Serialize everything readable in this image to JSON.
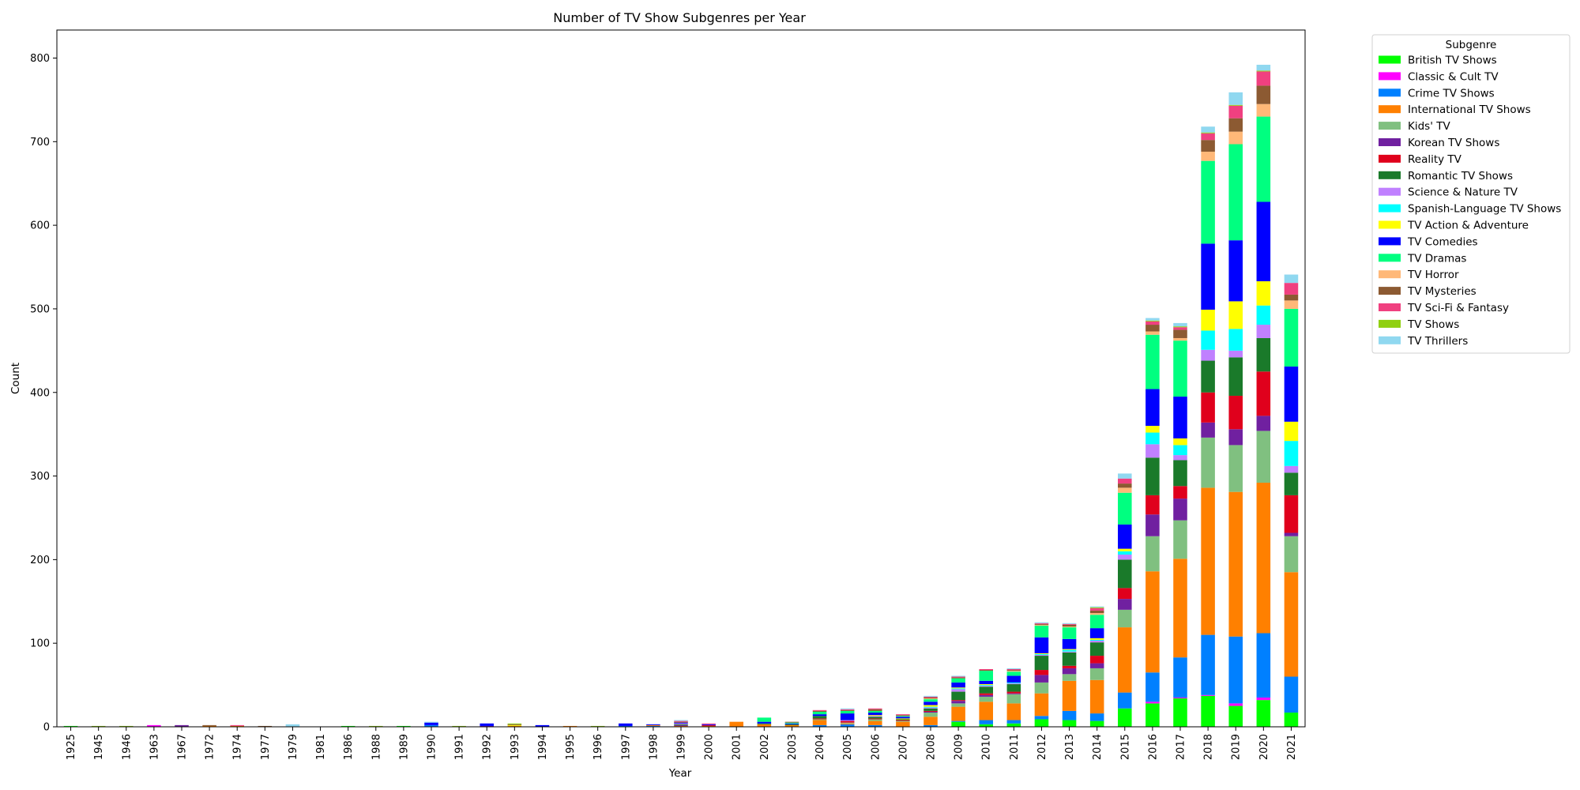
{
  "chart_data": {
    "type": "bar",
    "stacked": true,
    "title": "Number of TV Show Subgenres per Year",
    "xlabel": "Year",
    "ylabel": "Count",
    "ylim": [
      0,
      835
    ],
    "yticks": [
      0,
      100,
      200,
      300,
      400,
      500,
      600,
      700,
      800
    ],
    "legend_title": "Subgenre",
    "legend_placement": "outside-top-right",
    "grid": false,
    "categories": [
      "1925",
      "1945",
      "1946",
      "1963",
      "1967",
      "1972",
      "1974",
      "1977",
      "1979",
      "1981",
      "1986",
      "1988",
      "1989",
      "1990",
      "1991",
      "1992",
      "1993",
      "1994",
      "1995",
      "1996",
      "1997",
      "1998",
      "1999",
      "2000",
      "2001",
      "2002",
      "2003",
      "2004",
      "2005",
      "2006",
      "2007",
      "2008",
      "2009",
      "2010",
      "2011",
      "2012",
      "2013",
      "2014",
      "2015",
      "2016",
      "2017",
      "2018",
      "2019",
      "2020",
      "2021"
    ],
    "series": [
      {
        "name": "British TV Shows",
        "color": "#00ff00",
        "values": [
          1,
          0,
          0,
          0,
          0,
          0,
          0,
          0,
          0,
          0,
          1,
          0,
          1,
          0,
          0,
          0,
          0,
          0,
          0,
          0,
          0,
          0,
          0,
          0,
          0,
          0,
          0,
          0,
          0,
          0,
          0,
          0,
          6,
          3,
          4,
          9,
          8,
          7,
          22,
          28,
          34,
          37,
          25,
          32,
          17
        ]
      },
      {
        "name": "Classic & Cult TV",
        "color": "#ff00ff",
        "values": [
          0,
          0,
          0,
          2,
          0,
          0,
          0,
          0,
          0,
          0,
          0,
          0,
          0,
          0,
          0,
          0,
          0,
          0,
          0,
          0,
          0,
          0,
          0,
          0,
          0,
          0,
          0,
          0,
          0,
          0,
          0,
          0,
          0,
          0,
          0,
          0,
          0,
          0,
          0,
          2,
          1,
          1,
          3,
          3,
          0
        ]
      },
      {
        "name": "Crime TV Shows",
        "color": "#0080ff",
        "values": [
          0,
          0,
          0,
          0,
          0,
          0,
          0,
          0,
          0,
          0,
          0,
          0,
          0,
          2,
          0,
          0,
          0,
          0,
          0,
          0,
          1,
          1,
          0,
          0,
          0,
          0,
          0,
          2,
          3,
          2,
          0,
          2,
          1,
          5,
          4,
          4,
          11,
          9,
          19,
          35,
          48,
          72,
          80,
          77,
          43
        ]
      },
      {
        "name": "International TV Shows",
        "color": "#ff8000",
        "values": [
          0,
          0,
          0,
          0,
          0,
          1,
          1,
          0,
          0,
          0,
          0,
          0,
          0,
          0,
          0,
          0,
          1,
          0,
          1,
          0,
          0,
          1,
          1,
          1,
          6,
          3,
          2,
          6,
          1,
          5,
          6,
          10,
          17,
          22,
          20,
          27,
          36,
          40,
          78,
          121,
          118,
          176,
          173,
          180,
          125
        ]
      },
      {
        "name": "Kids' TV",
        "color": "#80c080",
        "values": [
          0,
          0,
          0,
          0,
          0,
          0,
          0,
          0,
          0,
          0,
          0,
          0,
          0,
          0,
          0,
          0,
          0,
          0,
          0,
          0,
          0,
          0,
          0,
          0,
          0,
          0,
          0,
          1,
          1,
          2,
          1,
          5,
          4,
          6,
          11,
          13,
          8,
          14,
          21,
          42,
          46,
          60,
          56,
          62,
          43
        ]
      },
      {
        "name": "Korean TV Shows",
        "color": "#7020a0",
        "values": [
          0,
          0,
          0,
          0,
          2,
          0,
          0,
          0,
          0,
          0,
          0,
          0,
          0,
          0,
          0,
          1,
          0,
          0,
          0,
          0,
          0,
          0,
          1,
          0,
          0,
          0,
          0,
          0,
          0,
          0,
          0,
          1,
          3,
          2,
          1,
          9,
          7,
          6,
          13,
          26,
          26,
          18,
          19,
          18,
          4
        ]
      },
      {
        "name": "Reality TV",
        "color": "#e0001c",
        "values": [
          0,
          0,
          0,
          0,
          0,
          0,
          0,
          0,
          0,
          0,
          0,
          0,
          0,
          0,
          0,
          0,
          0,
          0,
          0,
          0,
          0,
          0,
          0,
          1,
          0,
          0,
          0,
          1,
          2,
          1,
          1,
          1,
          1,
          2,
          2,
          6,
          3,
          9,
          13,
          23,
          15,
          36,
          40,
          53,
          45
        ]
      },
      {
        "name": "Romantic TV Shows",
        "color": "#1a7a2a",
        "values": [
          0,
          0,
          0,
          0,
          0,
          0,
          0,
          0,
          0,
          0,
          0,
          0,
          0,
          0,
          0,
          0,
          0,
          0,
          0,
          0,
          0,
          0,
          1,
          0,
          0,
          1,
          1,
          3,
          0,
          2,
          1,
          3,
          10,
          8,
          9,
          17,
          16,
          16,
          34,
          45,
          31,
          38,
          46,
          40,
          27
        ]
      },
      {
        "name": "Science & Nature TV",
        "color": "#c080ff",
        "values": [
          0,
          0,
          0,
          0,
          0,
          0,
          0,
          0,
          0,
          0,
          0,
          0,
          0,
          0,
          0,
          0,
          0,
          0,
          0,
          0,
          0,
          0,
          1,
          0,
          0,
          0,
          0,
          0,
          1,
          1,
          0,
          1,
          3,
          1,
          1,
          1,
          1,
          2,
          6,
          16,
          6,
          13,
          8,
          16,
          8
        ]
      },
      {
        "name": "Spanish-Language TV Shows",
        "color": "#00ffff",
        "values": [
          0,
          0,
          0,
          0,
          0,
          0,
          0,
          0,
          0,
          0,
          0,
          0,
          0,
          0,
          0,
          0,
          0,
          0,
          0,
          0,
          0,
          0,
          0,
          0,
          0,
          0,
          0,
          0,
          0,
          0,
          0,
          1,
          1,
          1,
          1,
          1,
          2,
          1,
          4,
          14,
          12,
          23,
          26,
          23,
          30
        ]
      },
      {
        "name": "TV Action & Adventure",
        "color": "#ffff00",
        "values": [
          0,
          0,
          0,
          0,
          0,
          0,
          0,
          0,
          0,
          0,
          0,
          0,
          0,
          0,
          0,
          0,
          1,
          0,
          0,
          0,
          0,
          0,
          0,
          0,
          0,
          0,
          0,
          0,
          0,
          1,
          1,
          2,
          1,
          1,
          0,
          1,
          1,
          2,
          3,
          8,
          8,
          25,
          33,
          29,
          23
        ]
      },
      {
        "name": "TV Comedies",
        "color": "#0000ff",
        "values": [
          0,
          0,
          0,
          0,
          0,
          0,
          0,
          0,
          0,
          0,
          0,
          0,
          0,
          3,
          0,
          3,
          0,
          2,
          0,
          0,
          3,
          1,
          1,
          1,
          0,
          2,
          1,
          2,
          8,
          3,
          2,
          4,
          6,
          4,
          8,
          19,
          12,
          12,
          29,
          44,
          50,
          79,
          73,
          95,
          66
        ]
      },
      {
        "name": "TV Dramas",
        "color": "#00ff80",
        "values": [
          0,
          0,
          0,
          0,
          0,
          0,
          0,
          0,
          0,
          0,
          0,
          0,
          0,
          0,
          0,
          0,
          0,
          0,
          0,
          0,
          0,
          0,
          0,
          0,
          0,
          5,
          1,
          3,
          3,
          2,
          1,
          3,
          5,
          12,
          5,
          14,
          14,
          16,
          38,
          65,
          67,
          99,
          115,
          102,
          69
        ]
      },
      {
        "name": "TV Horror",
        "color": "#ffb878",
        "values": [
          0,
          0,
          0,
          0,
          0,
          0,
          0,
          0,
          0,
          0,
          0,
          0,
          0,
          0,
          0,
          0,
          0,
          0,
          0,
          0,
          0,
          0,
          0,
          0,
          0,
          0,
          0,
          0,
          0,
          0,
          0,
          1,
          0,
          0,
          1,
          1,
          1,
          2,
          6,
          4,
          3,
          11,
          15,
          15,
          10
        ]
      },
      {
        "name": "TV Mysteries",
        "color": "#8c5a32",
        "values": [
          0,
          0,
          0,
          0,
          0,
          1,
          0,
          1,
          0,
          0,
          0,
          0,
          0,
          0,
          0,
          0,
          1,
          0,
          0,
          0,
          0,
          0,
          1,
          0,
          0,
          0,
          1,
          1,
          1,
          2,
          1,
          1,
          1,
          1,
          1,
          1,
          2,
          3,
          5,
          8,
          10,
          14,
          16,
          22,
          7
        ]
      },
      {
        "name": "TV Sci-Fi & Fantasy",
        "color": "#f04080",
        "values": [
          0,
          0,
          0,
          0,
          0,
          0,
          1,
          0,
          0,
          0,
          0,
          0,
          0,
          0,
          0,
          0,
          0,
          0,
          0,
          0,
          0,
          0,
          1,
          1,
          0,
          0,
          0,
          1,
          1,
          1,
          1,
          1,
          1,
          1,
          1,
          1,
          1,
          3,
          6,
          4,
          3,
          8,
          15,
          17,
          14
        ]
      },
      {
        "name": "TV Shows",
        "color": "#90d010",
        "values": [
          0,
          1,
          1,
          0,
          0,
          0,
          0,
          0,
          0,
          0,
          0,
          1,
          0,
          0,
          1,
          0,
          1,
          0,
          0,
          1,
          0,
          0,
          0,
          0,
          0,
          0,
          0,
          0,
          0,
          0,
          0,
          0,
          0,
          0,
          0,
          0,
          0,
          1,
          0,
          1,
          1,
          1,
          1,
          1,
          0
        ]
      },
      {
        "name": "TV Thrillers",
        "color": "#90d8f0",
        "values": [
          0,
          0,
          0,
          0,
          0,
          0,
          0,
          0,
          3,
          0,
          0,
          0,
          0,
          1,
          0,
          0,
          0,
          0,
          0,
          0,
          0,
          0,
          1,
          0,
          0,
          0,
          0,
          0,
          1,
          0,
          0,
          1,
          1,
          0,
          1,
          1,
          1,
          1,
          6,
          3,
          4,
          7,
          15,
          7,
          10
        ]
      }
    ]
  }
}
